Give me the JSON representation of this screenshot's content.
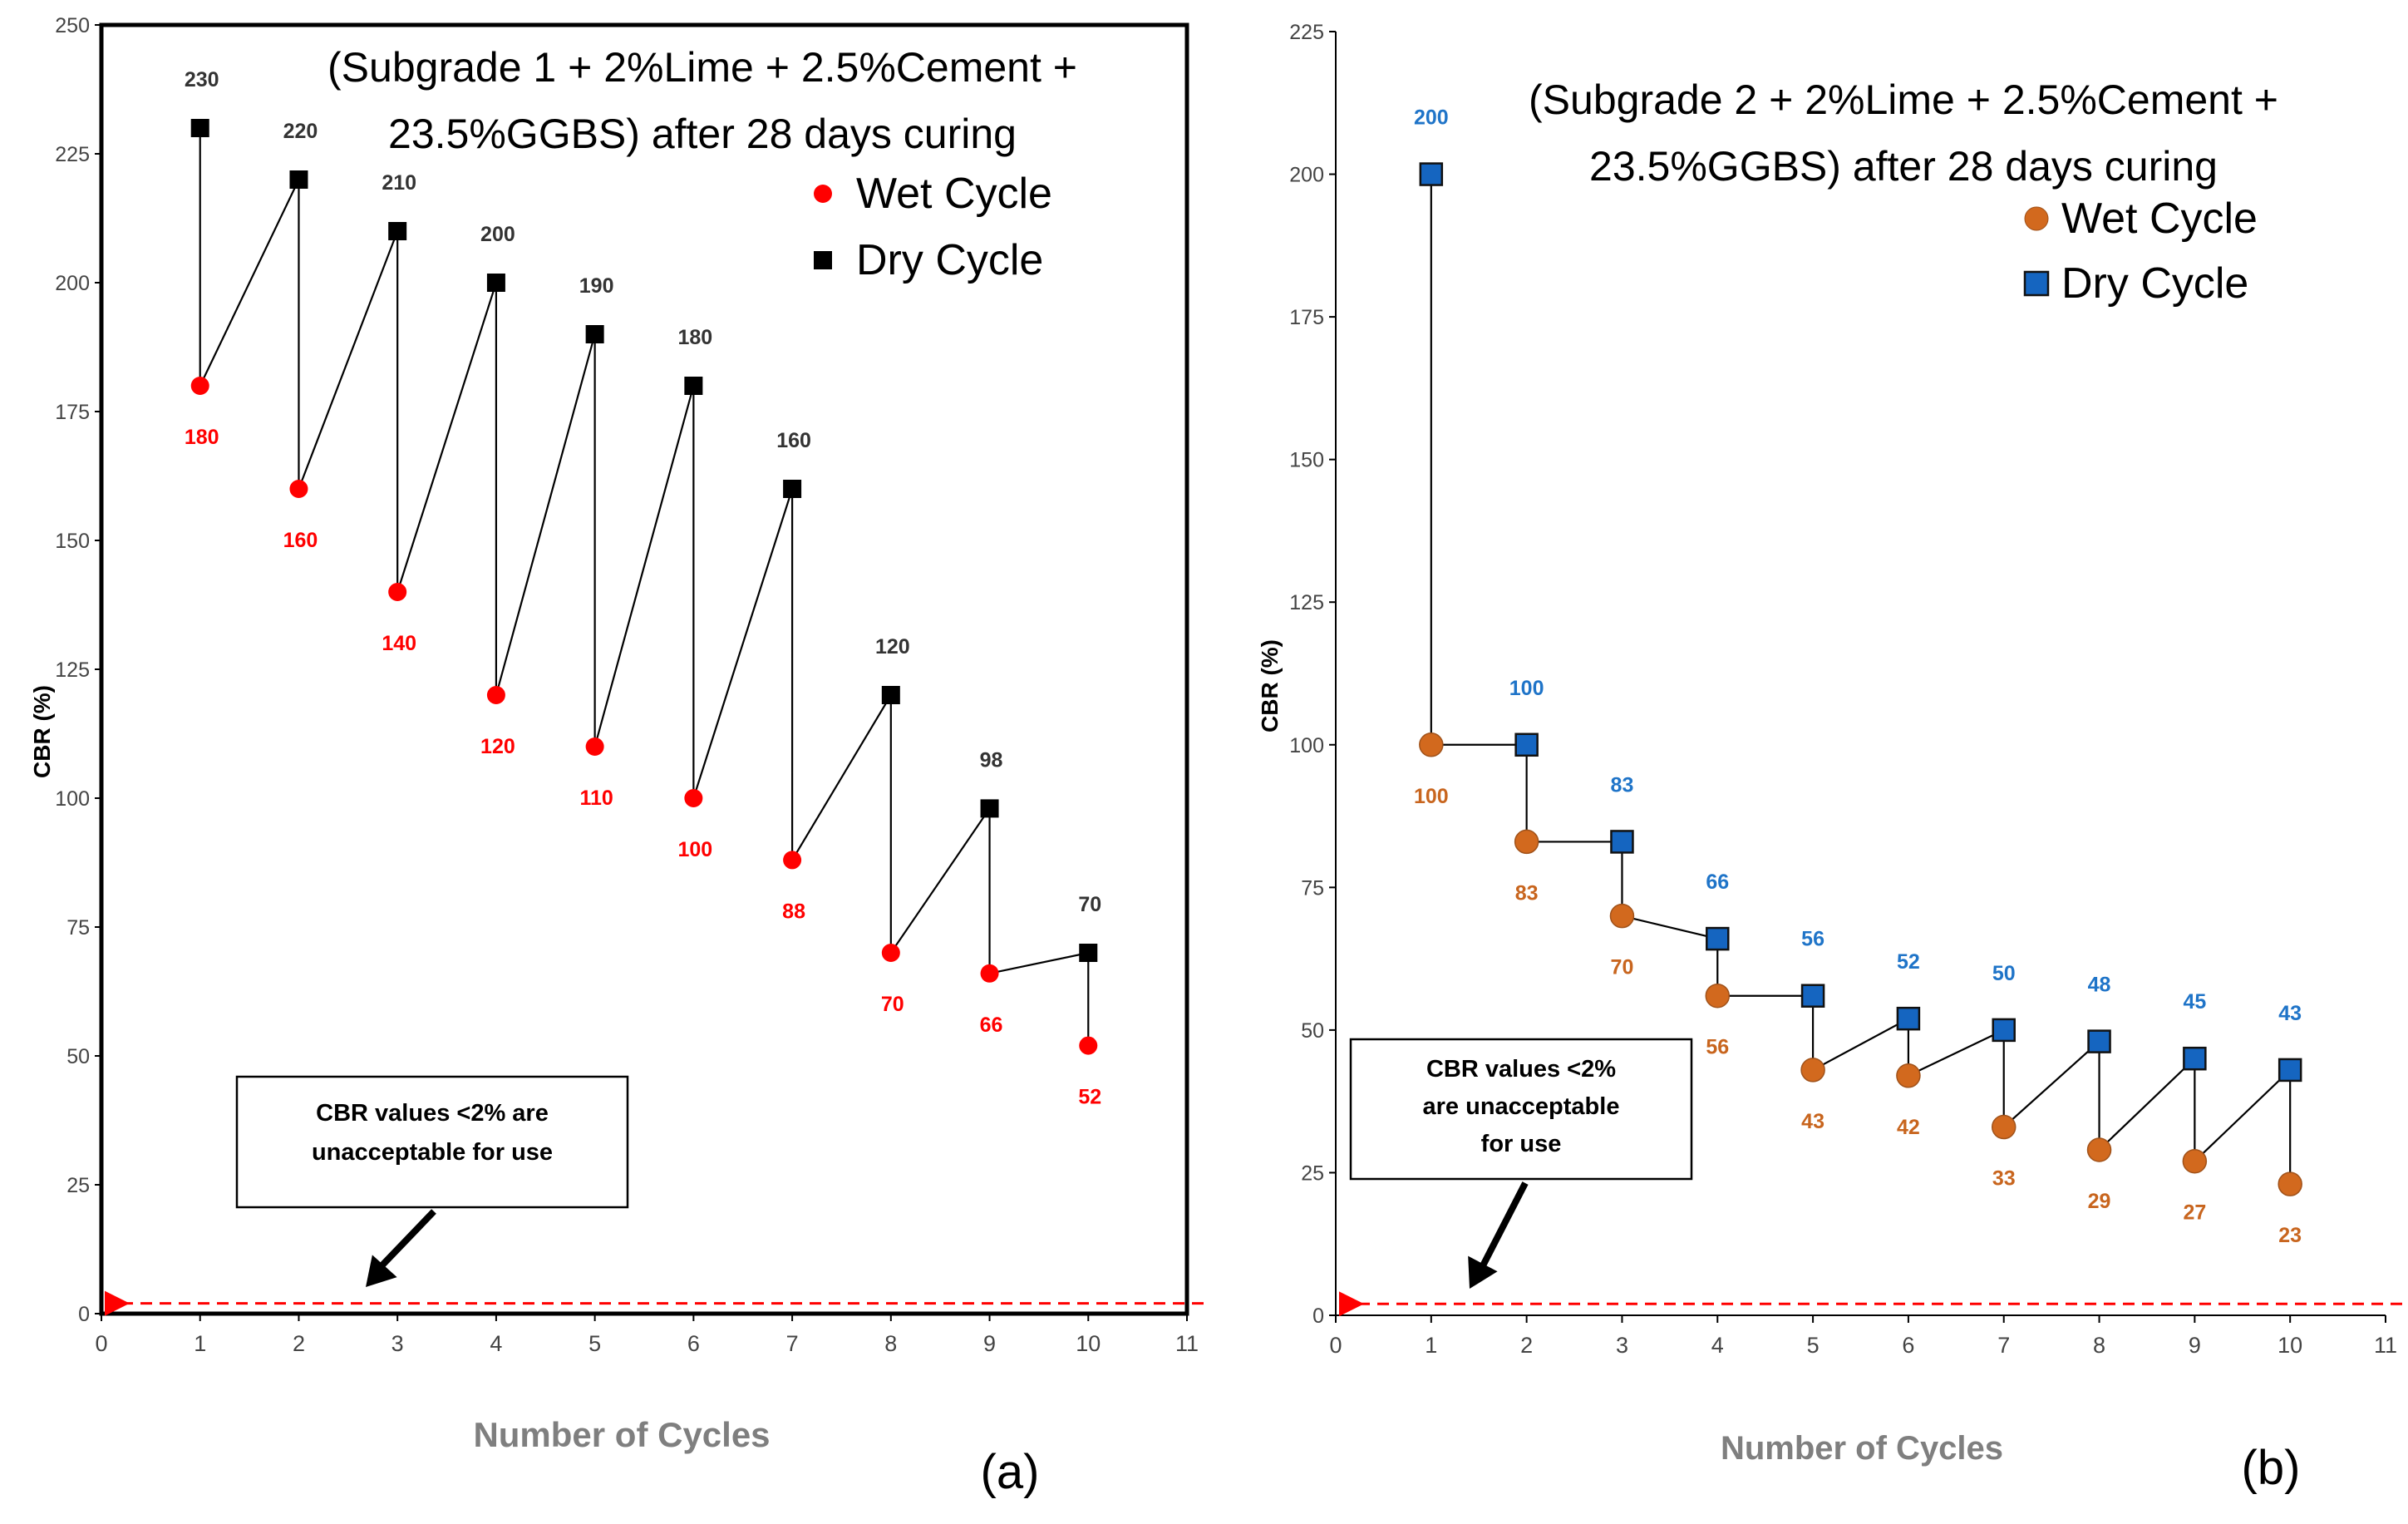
{
  "chart_data": [
    {
      "type": "line",
      "title": "(Subgrade 1 + 2%Lime + 2.5%Cement + 23.5%GGBS) after 28 days curing",
      "title_lines": [
        "(Subgrade 1 + 2%Lime + 2.5%Cement +",
        "23.5%GGBS) after 28 days curing"
      ],
      "xlabel": "Number of Cycles",
      "ylabel": "CBR (%)",
      "panel_label": "(a)",
      "xlim": [
        0,
        11
      ],
      "ylim": [
        0,
        250
      ],
      "x_ticks": [
        "0",
        "1",
        "2",
        "3",
        "4",
        "5",
        "6",
        "7",
        "8",
        "9",
        "10",
        "11"
      ],
      "y_ticks": [
        "0",
        "25",
        "50",
        "75",
        "100",
        "125",
        "150",
        "175",
        "200",
        "225",
        "250"
      ],
      "x_tick_values": [
        0,
        1,
        2,
        3,
        4,
        5,
        6,
        7,
        8,
        9,
        10,
        11
      ],
      "y_tick_values": [
        0,
        25,
        50,
        75,
        100,
        125,
        150,
        175,
        200,
        225,
        250
      ],
      "x": [
        1,
        2,
        3,
        4,
        5,
        6,
        7,
        8,
        9,
        10
      ],
      "series": [
        {
          "name": "Wet Cycle",
          "marker": "circle",
          "color": "#ff0000",
          "label_color": "#ff0000",
          "values": [
            180,
            160,
            140,
            120,
            110,
            100,
            88,
            70,
            66,
            52
          ],
          "labels": [
            "180",
            "160",
            "140",
            "120",
            "110",
            "100",
            "88",
            "70",
            "66",
            "52"
          ]
        },
        {
          "name": "Dry Cycle",
          "marker": "square",
          "color": "#000000",
          "label_color": "#333333",
          "values": [
            230,
            220,
            210,
            200,
            190,
            180,
            160,
            120,
            98,
            70
          ],
          "labels": [
            "230",
            "220",
            "210",
            "200",
            "190",
            "180",
            "160",
            "120",
            "98",
            "70"
          ]
        }
      ],
      "path_order": "dry1-wet1-dry2-wet2-...-dry10-wet10",
      "annotation": {
        "lines": [
          "CBR values <2%  are",
          "unacceptable for use"
        ],
        "threshold_value": 2
      },
      "legend_position": "top-right",
      "frame": "box",
      "grid": false
    },
    {
      "type": "line",
      "title": "(Subgrade 2 + 2%Lime + 2.5%Cement + 23.5%GGBS) after 28 days curing",
      "title_lines": [
        "(Subgrade 2 + 2%Lime + 2.5%Cement +",
        "23.5%GGBS) after 28 days curing"
      ],
      "xlabel": "Number of Cycles",
      "ylabel": "CBR (%)",
      "panel_label": "(b)",
      "xlim": [
        0,
        11
      ],
      "ylim": [
        0,
        225
      ],
      "x_ticks": [
        "0",
        "1",
        "2",
        "3",
        "4",
        "5",
        "6",
        "7",
        "8",
        "9",
        "10",
        "11"
      ],
      "y_ticks": [
        "0",
        "25",
        "50",
        "75",
        "100",
        "125",
        "150",
        "175",
        "200",
        "225"
      ],
      "x_tick_values": [
        0,
        1,
        2,
        3,
        4,
        5,
        6,
        7,
        8,
        9,
        10,
        11
      ],
      "y_tick_values": [
        0,
        25,
        50,
        75,
        100,
        125,
        150,
        175,
        200,
        225
      ],
      "x": [
        1,
        2,
        3,
        4,
        5,
        6,
        7,
        8,
        9,
        10
      ],
      "series": [
        {
          "name": "Wet Cycle",
          "marker": "circle",
          "color": "#d2691e",
          "label_color": "#c8651e",
          "values": [
            100,
            83,
            70,
            56,
            43,
            42,
            33,
            29,
            27,
            23
          ],
          "labels": [
            "100",
            "83",
            "70",
            "56",
            "43",
            "42",
            "33",
            "29",
            "27",
            "23"
          ]
        },
        {
          "name": "Dry Cycle",
          "marker": "square",
          "color": "#1565c0",
          "label_color": "#1f74c8",
          "values": [
            200,
            100,
            83,
            66,
            56,
            52,
            50,
            48,
            45,
            43
          ],
          "labels": [
            "200",
            "100",
            "83",
            "66",
            "56",
            "52",
            "50",
            "48",
            "45",
            "43"
          ]
        }
      ],
      "path_order": "dry1-wet1-dry2-wet2-...-dry10-wet10",
      "annotation": {
        "lines": [
          "CBR values <2%",
          "are unacceptable",
          "for use"
        ],
        "threshold_value": 2
      },
      "legend_position": "top-right",
      "frame": "axes",
      "grid": false
    }
  ]
}
